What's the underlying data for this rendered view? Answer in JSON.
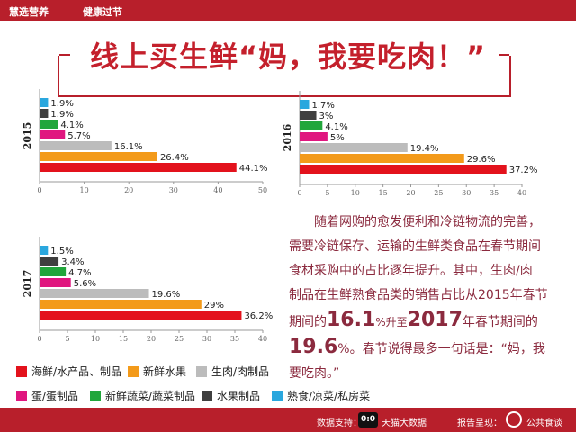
{
  "header": {
    "left": "慧选营养",
    "right": "健康过节"
  },
  "title": "线上买生鲜“妈，我要吃肉！”",
  "legend": [
    {
      "label": "海鲜/水产品、制品",
      "color": "#e3121c"
    },
    {
      "label": "新鲜水果",
      "color": "#f39a1a"
    },
    {
      "label": "生肉/肉制品",
      "color": "#bcbcbc"
    },
    {
      "label": "蛋/蛋制品",
      "color": "#e0167f"
    },
    {
      "label": "新鲜蔬菜/蔬菜制品",
      "color": "#21a63b"
    },
    {
      "label": "水果制品",
      "color": "#3f3f3f"
    },
    {
      "label": "熟食/凉菜/私房菜",
      "color": "#2aa7de"
    }
  ],
  "chart_data": [
    {
      "type": "bar",
      "title": "2015",
      "orientation": "horizontal",
      "categories": [
        "熟食/凉菜/私房菜",
        "水果制品",
        "新鲜蔬菜/蔬菜制品",
        "蛋/蛋制品",
        "生肉/肉制品",
        "新鲜水果",
        "海鲜/水产品、制品"
      ],
      "values": [
        1.9,
        1.9,
        4.1,
        5.7,
        16.1,
        26.4,
        44.1
      ],
      "labels": [
        "1.9%",
        "1.9%",
        "4.1%",
        "5.7%",
        "16.1%",
        "26.4%",
        "44.1%"
      ],
      "xlim": [
        0,
        50
      ],
      "xticks": [
        0,
        10,
        20,
        30,
        40,
        50
      ]
    },
    {
      "type": "bar",
      "title": "2016",
      "orientation": "horizontal",
      "categories": [
        "熟食/凉菜/私房菜",
        "水果制品",
        "新鲜蔬菜/蔬菜制品",
        "蛋/蛋制品",
        "生肉/肉制品",
        "新鲜水果",
        "海鲜/水产品、制品"
      ],
      "values": [
        1.7,
        3,
        4.1,
        5,
        19.4,
        29.6,
        37.2
      ],
      "labels": [
        "1.7%",
        "3%",
        "4.1%",
        "5%",
        "19.4%",
        "29.6%",
        "37.2%"
      ],
      "xlim": [
        0,
        40
      ],
      "xticks": [
        0,
        5,
        10,
        15,
        20,
        25,
        30,
        35,
        40
      ]
    },
    {
      "type": "bar",
      "title": "2017",
      "orientation": "horizontal",
      "categories": [
        "熟食/凉菜/私房菜",
        "水果制品",
        "新鲜蔬菜/蔬菜制品",
        "蛋/蛋制品",
        "生肉/肉制品",
        "新鲜水果",
        "海鲜/水产品、制品"
      ],
      "values": [
        1.5,
        3.4,
        4.7,
        5.6,
        19.6,
        29,
        36.2
      ],
      "labels": [
        "1.5%",
        "3.4%",
        "4.7%",
        "5.6%",
        "19.6%",
        "29%",
        "36.2%"
      ],
      "xlim": [
        0,
        40
      ],
      "xticks": [
        0,
        5,
        10,
        15,
        20,
        25,
        30,
        35,
        40
      ]
    }
  ],
  "paragraph": {
    "l1": "随着网购的愈发便利和冷链物流的完善，",
    "l2": "需要冷链保存、运输的生鲜类食品在春节期间",
    "l3": "食材采购中的占比逐年提升。其中，生肉/肉",
    "l4": "制品在生鲜熟食品类的销售占比从2015年春节",
    "l5a": "期间的",
    "l5b": "16.1",
    "l5c": "%升至",
    "l5d": "2017",
    "l5e": "年春节期间的",
    "l6a": "19.6",
    "l6b": "%。春节说得最多一句话是：“妈，我",
    "l7": "要吃肉。”"
  },
  "footer": {
    "data_label": "数据支持：",
    "cat_logo": "0:0",
    "data_source": "天猫大数据",
    "report_label": "报告呈现：",
    "report_source": "公共食谈"
  }
}
